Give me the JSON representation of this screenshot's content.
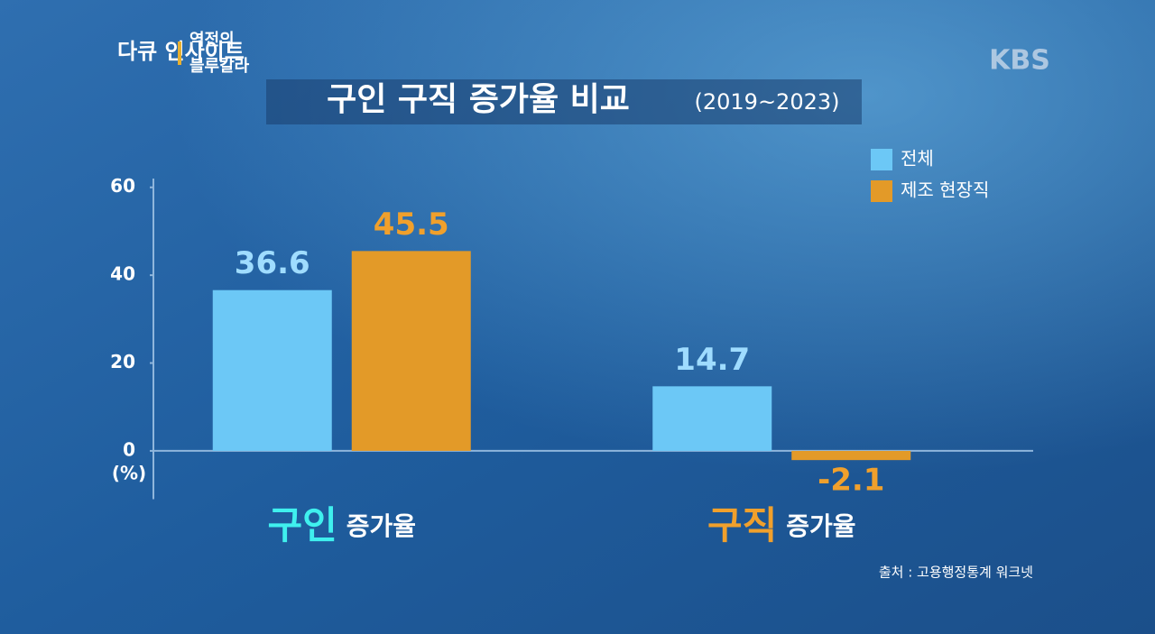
{
  "branding": {
    "program": "다큐 인사이트",
    "episode": [
      "역전의",
      "블루칼라"
    ],
    "channel": "KBS"
  },
  "chart_data": {
    "type": "bar",
    "title": "구인 구직 증가율 비교",
    "subtitle": "(2019~2023)",
    "y_unit": "(%)",
    "categories": [
      "구인 증가율",
      "구직 증가율"
    ],
    "category_colors": [
      "#3ff0ee",
      "#f0a02c"
    ],
    "series": [
      {
        "name": "전체",
        "color": "#6cc8f6",
        "label_color": "#9fdcff",
        "values": [
          36.6,
          14.7
        ]
      },
      {
        "name": "제조 현장직",
        "color": "#e39a28",
        "label_color": "#f0a02c",
        "values": [
          45.5,
          -2.1
        ]
      }
    ],
    "ylim": [
      -11,
      62
    ],
    "yticks": [
      0,
      20,
      40,
      60
    ],
    "legend": "top-right",
    "source": "출처 : 고용행정통계 워크넷"
  }
}
